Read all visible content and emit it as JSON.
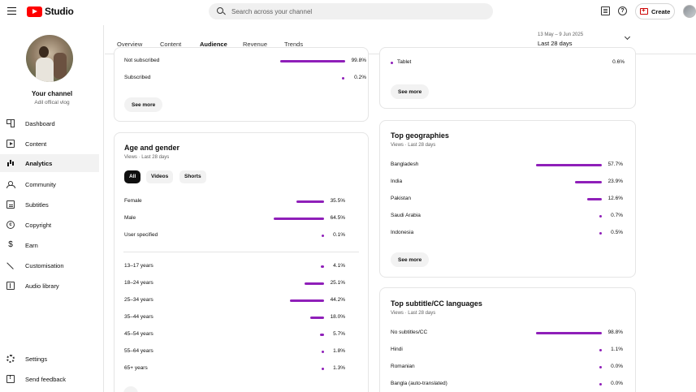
{
  "header": {
    "logo_text": "Studio",
    "search_placeholder": "Search across your channel",
    "create_label": "Create"
  },
  "sidebar": {
    "channel_name": "Your channel",
    "channel_handle": "Adil offical vlog",
    "items": [
      {
        "label": "Dashboard",
        "icon": "dashboard-icon"
      },
      {
        "label": "Content",
        "icon": "content-icon"
      },
      {
        "label": "Analytics",
        "icon": "analytics-icon",
        "active": true
      },
      {
        "label": "Community",
        "icon": "community-icon"
      },
      {
        "label": "Subtitles",
        "icon": "subtitles-icon"
      },
      {
        "label": "Copyright",
        "icon": "copyright-icon"
      },
      {
        "label": "Earn",
        "icon": "earn-icon"
      },
      {
        "label": "Customisation",
        "icon": "customisation-icon"
      },
      {
        "label": "Audio library",
        "icon": "audio-library-icon"
      }
    ],
    "bottom_items": [
      {
        "label": "Settings",
        "icon": "settings-icon"
      },
      {
        "label": "Send feedback",
        "icon": "feedback-icon"
      }
    ]
  },
  "tabs": [
    "Overview",
    "Content",
    "Audience",
    "Revenue",
    "Trends"
  ],
  "active_tab": "Audience",
  "date_range": {
    "dates": "13 May – 9 Jun 2025",
    "label": "Last 28 days"
  },
  "subscription_card": {
    "rows": [
      {
        "label": "Not subscribed",
        "value": "99.8%",
        "pct": 99.8
      },
      {
        "label": "Subscribed",
        "value": "0.2%",
        "pct": 0.2
      }
    ],
    "see_more": "See more"
  },
  "device_card": {
    "rows": [
      {
        "label": "Tablet",
        "value": "0.6%",
        "pct": 0.6
      }
    ],
    "see_more": "See more"
  },
  "age_gender_card": {
    "title": "Age and gender",
    "subtitle": "Views · Last 28 days",
    "chips": [
      "All",
      "Videos",
      "Shorts"
    ],
    "selected_chip": "All",
    "gender_rows": [
      {
        "label": "Female",
        "value": "35.5%",
        "pct": 35.5
      },
      {
        "label": "Male",
        "value": "64.5%",
        "pct": 64.5
      },
      {
        "label": "User specified",
        "value": "0.1%",
        "pct": 0.1
      }
    ],
    "age_rows": [
      {
        "label": "13–17 years",
        "value": "4.1%",
        "pct": 4.1
      },
      {
        "label": "18–24 years",
        "value": "25.1%",
        "pct": 25.1
      },
      {
        "label": "25–34 years",
        "value": "44.2%",
        "pct": 44.2
      },
      {
        "label": "35–44 years",
        "value": "18.0%",
        "pct": 18.0
      },
      {
        "label": "45–54 years",
        "value": "5.7%",
        "pct": 5.7
      },
      {
        "label": "55–64 years",
        "value": "1.8%",
        "pct": 1.8
      },
      {
        "label": "65+ years",
        "value": "1.3%",
        "pct": 1.3
      }
    ]
  },
  "geo_card": {
    "title": "Top geographies",
    "subtitle": "Views · Last 28 days",
    "rows": [
      {
        "label": "Bangladesh",
        "value": "57.7%",
        "pct": 57.7
      },
      {
        "label": "India",
        "value": "23.9%",
        "pct": 23.9
      },
      {
        "label": "Pakistan",
        "value": "12.6%",
        "pct": 12.6
      },
      {
        "label": "Saudi Arabia",
        "value": "0.7%",
        "pct": 0.7
      },
      {
        "label": "Indonesia",
        "value": "0.5%",
        "pct": 0.5
      }
    ],
    "see_more": "See more"
  },
  "subtitle_card": {
    "title": "Top subtitle/CC languages",
    "subtitle": "Views · Last 28 days",
    "rows": [
      {
        "label": "No subtitles/CC",
        "value": "98.8%",
        "pct": 98.8
      },
      {
        "label": "Hindi",
        "value": "1.1%",
        "pct": 1.1
      },
      {
        "label": "Romanian",
        "value": "0.0%",
        "pct": 0.0
      },
      {
        "label": "Bangla (auto-translated)",
        "value": "0.0%",
        "pct": 0.0
      }
    ]
  },
  "colors": {
    "accent": "#8f1fb9",
    "brand": "#ff0000"
  }
}
